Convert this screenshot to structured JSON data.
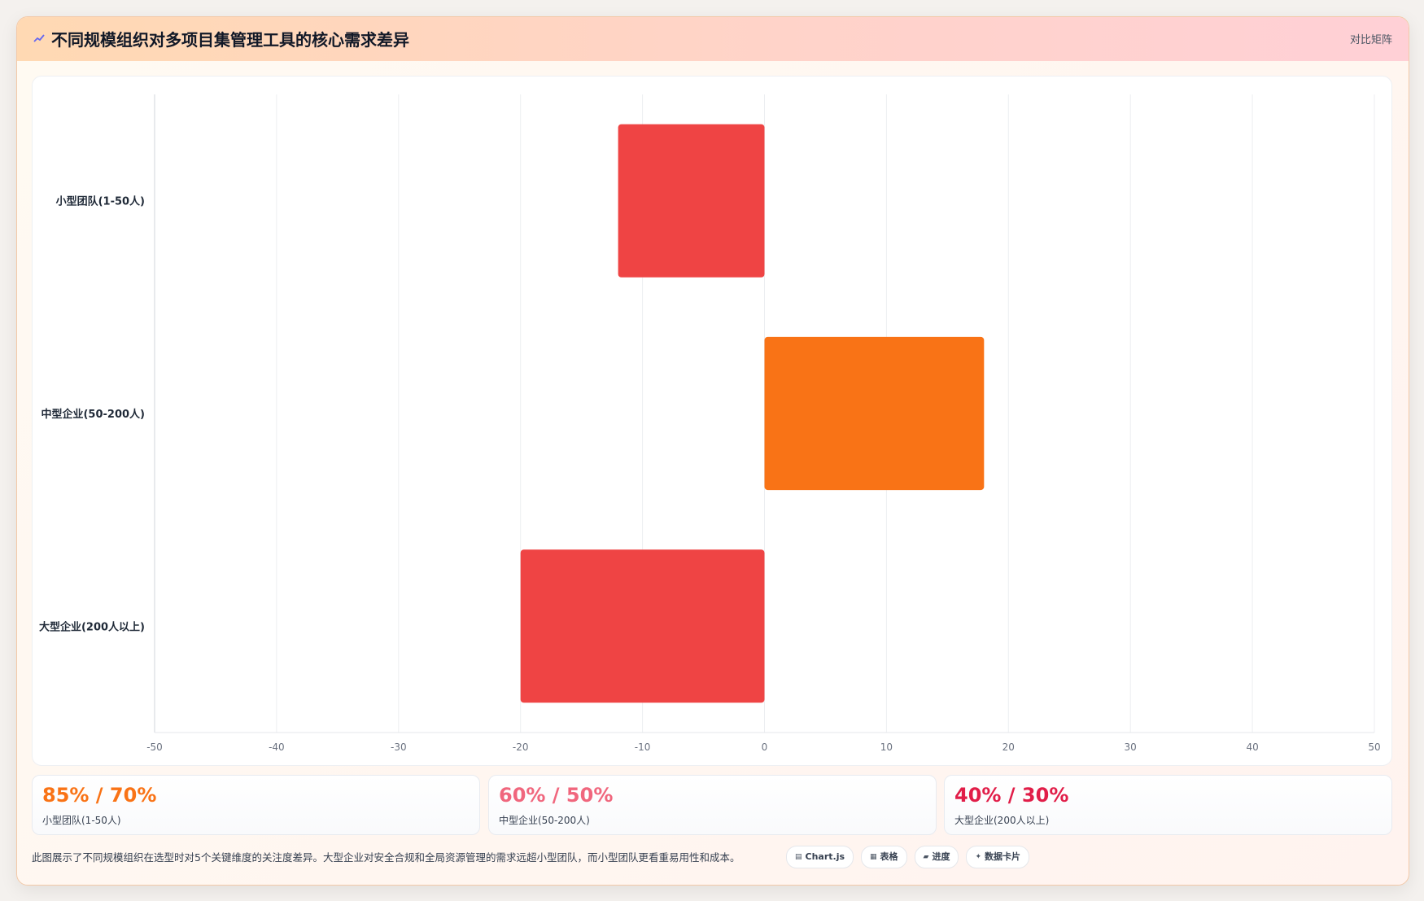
{
  "header": {
    "title": "不同规模组织对多项目集管理工具的核心需求差异",
    "badge": "对比矩阵",
    "icon": "line-chart-icon"
  },
  "chart_data": {
    "type": "bar",
    "orientation": "horizontal",
    "categories": [
      "小型团队(1-50人)",
      "中型企业(50-200人)",
      "大型企业(200人以上)"
    ],
    "values": [
      -12,
      18,
      -20
    ],
    "bar_colors": [
      "#ef4444",
      "#f97316",
      "#ef4444"
    ],
    "xlim": [
      -50,
      50
    ],
    "xticks": [
      -50,
      -40,
      -30,
      -20,
      -10,
      0,
      10,
      20,
      30,
      40,
      50
    ],
    "grid": true
  },
  "stats": [
    {
      "value": "85% / 70%",
      "label": "小型团队(1-50人)",
      "color": "#f97316"
    },
    {
      "value": "60% / 50%",
      "label": "中型企业(50-200人)",
      "color": "#f0667d"
    },
    {
      "value": "40% / 30%",
      "label": "大型企业(200人以上)",
      "color": "#e11d48"
    }
  ],
  "caption": "此图展示了不同规模组织在选型时对5个关键维度的关注度差异。大型企业对安全合规和全局资源管理的需求远超小型团队，而小型团队更看重易用性和成本。",
  "pills": [
    {
      "label": "Chart.js",
      "icon": "chart-icon"
    },
    {
      "label": "表格",
      "icon": "table-icon"
    },
    {
      "label": "进度",
      "icon": "progress-icon"
    },
    {
      "label": "数据卡片",
      "icon": "sparkle-icon"
    }
  ]
}
